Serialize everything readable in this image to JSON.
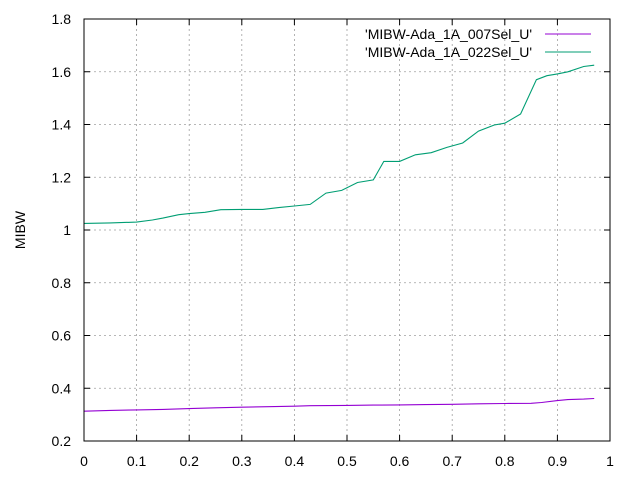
{
  "chart_data": {
    "type": "line",
    "title": "",
    "xlabel": "",
    "ylabel": "MIBW",
    "xlim": [
      0,
      1
    ],
    "ylim": [
      0.2,
      1.8
    ],
    "x_ticks": [
      "0",
      "0.1",
      "0.2",
      "0.3",
      "0.4",
      "0.5",
      "0.6",
      "0.7",
      "0.8",
      "0.9",
      "1"
    ],
    "y_ticks": [
      "0.2",
      "0.4",
      "0.6",
      "0.8",
      "1",
      "1.2",
      "1.4",
      "1.6",
      "1.8"
    ],
    "grid": true,
    "legend_position": "top-right",
    "series": [
      {
        "name": "'MIBW-Ada_1A_007Sel_U'",
        "color": "#9400d3",
        "points": [
          [
            0.0,
            0.313
          ],
          [
            0.05,
            0.316
          ],
          [
            0.1,
            0.318
          ],
          [
            0.15,
            0.32
          ],
          [
            0.2,
            0.323
          ],
          [
            0.25,
            0.326
          ],
          [
            0.3,
            0.328
          ],
          [
            0.35,
            0.33
          ],
          [
            0.4,
            0.332
          ],
          [
            0.43,
            0.334
          ],
          [
            0.5,
            0.335
          ],
          [
            0.55,
            0.336
          ],
          [
            0.6,
            0.337
          ],
          [
            0.65,
            0.338
          ],
          [
            0.7,
            0.339
          ],
          [
            0.75,
            0.341
          ],
          [
            0.8,
            0.342
          ],
          [
            0.85,
            0.343
          ],
          [
            0.87,
            0.346
          ],
          [
            0.9,
            0.353
          ],
          [
            0.92,
            0.357
          ],
          [
            0.95,
            0.359
          ],
          [
            0.97,
            0.361
          ]
        ]
      },
      {
        "name": "'MIBW-Ada_1A_022Sel_U'",
        "color": "#009e73",
        "points": [
          [
            0.0,
            1.025
          ],
          [
            0.05,
            1.027
          ],
          [
            0.1,
            1.03
          ],
          [
            0.13,
            1.038
          ],
          [
            0.15,
            1.045
          ],
          [
            0.18,
            1.058
          ],
          [
            0.2,
            1.062
          ],
          [
            0.23,
            1.067
          ],
          [
            0.26,
            1.077
          ],
          [
            0.3,
            1.078
          ],
          [
            0.34,
            1.078
          ],
          [
            0.37,
            1.085
          ],
          [
            0.4,
            1.091
          ],
          [
            0.43,
            1.097
          ],
          [
            0.46,
            1.14
          ],
          [
            0.49,
            1.15
          ],
          [
            0.52,
            1.18
          ],
          [
            0.55,
            1.19
          ],
          [
            0.57,
            1.26
          ],
          [
            0.6,
            1.26
          ],
          [
            0.63,
            1.285
          ],
          [
            0.66,
            1.293
          ],
          [
            0.69,
            1.313
          ],
          [
            0.72,
            1.33
          ],
          [
            0.75,
            1.375
          ],
          [
            0.78,
            1.398
          ],
          [
            0.8,
            1.405
          ],
          [
            0.83,
            1.44
          ],
          [
            0.86,
            1.57
          ],
          [
            0.88,
            1.585
          ],
          [
            0.9,
            1.592
          ],
          [
            0.92,
            1.6
          ],
          [
            0.95,
            1.62
          ],
          [
            0.97,
            1.625
          ]
        ]
      }
    ]
  }
}
